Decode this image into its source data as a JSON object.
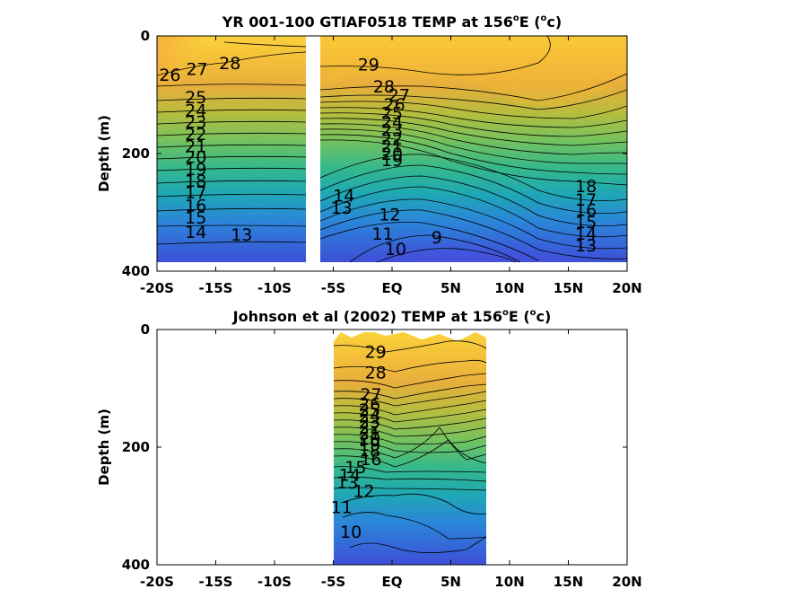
{
  "chart_data": [
    {
      "type": "heatmap",
      "title_main": "YR 001-100 GTIAF0518 TEMP at 156",
      "title_sup": "o",
      "title_end": "E (",
      "title_sup2": "o",
      "title_unit": "c)",
      "ylabel": "Depth (m)",
      "xlim": [
        -20,
        20
      ],
      "ylim": [
        0,
        400
      ],
      "xticks": [
        -20,
        -15,
        -10,
        -5,
        0,
        5,
        10,
        15,
        20
      ],
      "xticklabels": [
        "-20S",
        "-15S",
        "-10S",
        "-5S",
        "EQ",
        "5N",
        "10N",
        "15N",
        "20N"
      ],
      "yticks": [
        0,
        200,
        400
      ],
      "yticklabels": [
        "0",
        "200",
        "400"
      ],
      "data_x_range": [
        -20,
        20
      ],
      "data_max_depth": 385,
      "gap_x_range": [
        -7.7,
        -6.5
      ],
      "levels": [
        9,
        10,
        11,
        12,
        13,
        14,
        15,
        16,
        17,
        18,
        19,
        20,
        21,
        22,
        23,
        24,
        25,
        26,
        27,
        28,
        29
      ],
      "contour_labels": [
        {
          "text": "26",
          "x": -18.9,
          "y": 68
        },
        {
          "text": "27",
          "x": -16.6,
          "y": 58
        },
        {
          "text": "28",
          "x": -13.8,
          "y": 48
        },
        {
          "text": "25",
          "x": -16.7,
          "y": 106
        },
        {
          "text": "24",
          "x": -16.7,
          "y": 128
        },
        {
          "text": "23",
          "x": -16.7,
          "y": 148
        },
        {
          "text": "22",
          "x": -16.7,
          "y": 169
        },
        {
          "text": "21",
          "x": -16.7,
          "y": 189
        },
        {
          "text": "20",
          "x": -16.7,
          "y": 208
        },
        {
          "text": "19",
          "x": -16.7,
          "y": 228
        },
        {
          "text": "18",
          "x": -16.7,
          "y": 248
        },
        {
          "text": "17",
          "x": -16.7,
          "y": 268
        },
        {
          "text": "16",
          "x": -16.7,
          "y": 290
        },
        {
          "text": "15",
          "x": -16.7,
          "y": 311
        },
        {
          "text": "14",
          "x": -16.7,
          "y": 335
        },
        {
          "text": "13",
          "x": -12.8,
          "y": 340
        },
        {
          "text": "29",
          "x": -2.0,
          "y": 50
        },
        {
          "text": "28",
          "x": -0.7,
          "y": 88
        },
        {
          "text": "27",
          "x": 0.6,
          "y": 102
        },
        {
          "text": "26",
          "x": 0.2,
          "y": 118
        },
        {
          "text": "25",
          "x": 0.0,
          "y": 133
        },
        {
          "text": "24",
          "x": 0.0,
          "y": 148
        },
        {
          "text": "23",
          "x": 0.0,
          "y": 162
        },
        {
          "text": "22",
          "x": 0.0,
          "y": 176
        },
        {
          "text": "21",
          "x": 0.0,
          "y": 189
        },
        {
          "text": "20",
          "x": 0.0,
          "y": 202
        },
        {
          "text": "19",
          "x": 0.0,
          "y": 213
        },
        {
          "text": "14",
          "x": -4.1,
          "y": 273
        },
        {
          "text": "13",
          "x": -4.3,
          "y": 294
        },
        {
          "text": "12",
          "x": -0.2,
          "y": 305
        },
        {
          "text": "11",
          "x": -0.8,
          "y": 338
        },
        {
          "text": "10",
          "x": 0.3,
          "y": 364
        },
        {
          "text": "9",
          "x": 3.8,
          "y": 344
        },
        {
          "text": "18",
          "x": 16.5,
          "y": 257
        },
        {
          "text": "17",
          "x": 16.5,
          "y": 280
        },
        {
          "text": "16",
          "x": 16.5,
          "y": 298
        },
        {
          "text": "15",
          "x": 16.5,
          "y": 318
        },
        {
          "text": "14",
          "x": 16.5,
          "y": 338
        },
        {
          "text": "13",
          "x": 16.5,
          "y": 358
        }
      ]
    },
    {
      "type": "heatmap",
      "title_main": "Johnson et al (2002) TEMP at 156",
      "title_sup": "o",
      "title_end": "E (",
      "title_sup2": "o",
      "title_unit": "c)",
      "ylabel": "Depth (m)",
      "xlim": [
        -20,
        20
      ],
      "ylim": [
        0,
        400
      ],
      "xticks": [
        -20,
        -15,
        -10,
        -5,
        0,
        5,
        10,
        15,
        20
      ],
      "xticklabels": [
        "-20S",
        "-15S",
        "-10S",
        "-5S",
        "EQ",
        "5N",
        "10N",
        "15N",
        "20N"
      ],
      "yticks": [
        0,
        200,
        400
      ],
      "yticklabels": [
        "0",
        "200",
        "400"
      ],
      "data_x_range": [
        -5,
        8
      ],
      "data_max_depth": 400,
      "levels": [
        9,
        10,
        11,
        12,
        13,
        14,
        15,
        16,
        17,
        18,
        19,
        20,
        21,
        22,
        23,
        24,
        25,
        26,
        27,
        28,
        29
      ],
      "contour_labels": [
        {
          "text": "29",
          "x": -1.4,
          "y": 40
        },
        {
          "text": "28",
          "x": -1.4,
          "y": 75
        },
        {
          "text": "27",
          "x": -1.8,
          "y": 112
        },
        {
          "text": "26",
          "x": -1.9,
          "y": 128
        },
        {
          "text": "25",
          "x": -1.9,
          "y": 138
        },
        {
          "text": "24",
          "x": -1.9,
          "y": 148
        },
        {
          "text": "23",
          "x": -1.9,
          "y": 158
        },
        {
          "text": "22",
          "x": -1.9,
          "y": 168
        },
        {
          "text": "21",
          "x": -1.9,
          "y": 178
        },
        {
          "text": "20",
          "x": -1.9,
          "y": 188
        },
        {
          "text": "19",
          "x": -1.9,
          "y": 198
        },
        {
          "text": "18",
          "x": -1.9,
          "y": 208
        },
        {
          "text": "16",
          "x": -1.8,
          "y": 222
        },
        {
          "text": "15",
          "x": -3.1,
          "y": 236
        },
        {
          "text": "14",
          "x": -3.6,
          "y": 249
        },
        {
          "text": "13",
          "x": -3.8,
          "y": 262
        },
        {
          "text": "12",
          "x": -2.4,
          "y": 276
        },
        {
          "text": "11",
          "x": -4.3,
          "y": 304
        },
        {
          "text": "10",
          "x": -3.5,
          "y": 346
        }
      ]
    }
  ]
}
